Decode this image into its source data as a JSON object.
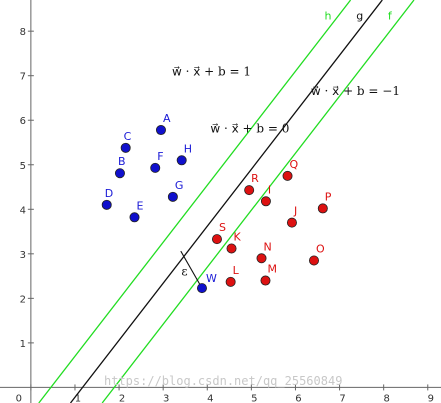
{
  "chart_data": {
    "type": "scatter",
    "xlim": [
      -0.7,
      9.3
    ],
    "ylim": [
      -0.35,
      8.7
    ],
    "grid": false,
    "x_ticks": [
      0,
      1,
      2,
      3,
      4,
      5,
      6,
      7,
      8,
      9
    ],
    "y_ticks": [
      1,
      2,
      3,
      4,
      5,
      6,
      7,
      8
    ],
    "x_tick_labels": [
      "0",
      "1",
      "2",
      "3",
      "4",
      "5",
      "6",
      "7",
      "8",
      "9"
    ],
    "y_tick_labels": [
      "1",
      "2",
      "3",
      "4",
      "5",
      "6",
      "7",
      "8"
    ],
    "series": [
      {
        "color": "#1010cc",
        "label_color": "#1a1ad6",
        "points": [
          {
            "label": "A",
            "x": 2.95,
            "y": 5.78
          },
          {
            "label": "C",
            "x": 2.15,
            "y": 5.38
          },
          {
            "label": "B",
            "x": 2.02,
            "y": 4.81
          },
          {
            "label": "D",
            "x": 1.72,
            "y": 4.1
          },
          {
            "label": "E",
            "x": 2.35,
            "y": 3.82
          },
          {
            "label": "F",
            "x": 2.82,
            "y": 4.93
          },
          {
            "label": "H",
            "x": 3.42,
            "y": 5.1
          },
          {
            "label": "G",
            "x": 3.22,
            "y": 4.28
          },
          {
            "label": "W",
            "x": 3.88,
            "y": 2.23
          }
        ]
      },
      {
        "color": "#dd1111",
        "label_color": "#dd1111",
        "points": [
          {
            "label": "R",
            "x": 4.95,
            "y": 4.43
          },
          {
            "label": "I",
            "x": 5.33,
            "y": 4.18
          },
          {
            "label": "Q",
            "x": 5.82,
            "y": 4.75
          },
          {
            "label": "P",
            "x": 6.62,
            "y": 4.02
          },
          {
            "label": "J",
            "x": 5.92,
            "y": 3.7
          },
          {
            "label": "S",
            "x": 4.22,
            "y": 3.33
          },
          {
            "label": "K",
            "x": 4.55,
            "y": 3.12
          },
          {
            "label": "N",
            "x": 5.23,
            "y": 2.9
          },
          {
            "label": "O",
            "x": 6.42,
            "y": 2.85
          },
          {
            "label": "L",
            "x": 4.53,
            "y": 2.37
          },
          {
            "label": "M",
            "x": 5.32,
            "y": 2.4
          }
        ]
      }
    ],
    "lines": [
      {
        "name": "h",
        "color": "#22dd22",
        "slope": 1.28,
        "intercept": -0.58
      },
      {
        "name": "g",
        "color": "#111111",
        "slope": 1.28,
        "intercept": -1.5
      },
      {
        "name": "f",
        "color": "#22dd22",
        "slope": 1.28,
        "intercept": -2.42
      }
    ],
    "margin_segment": {
      "label": "ε",
      "from": [
        3.4,
        3.06
      ],
      "to": [
        3.88,
        2.23
      ]
    },
    "equations": [
      {
        "text": "w⃗ · x⃗ + b = 1",
        "x": 3.2,
        "y": 7.0
      },
      {
        "text": "w⃗ · x⃗ + b = 0",
        "x": 4.07,
        "y": 5.72
      },
      {
        "text": "w⃗ · x⃗ + b = −1",
        "x": 6.35,
        "y": 6.57
      }
    ],
    "watermark": "https://blog.csdn.net/qq_25560849",
    "colors": {
      "axis": "#666666",
      "background": "#ffffff"
    }
  }
}
